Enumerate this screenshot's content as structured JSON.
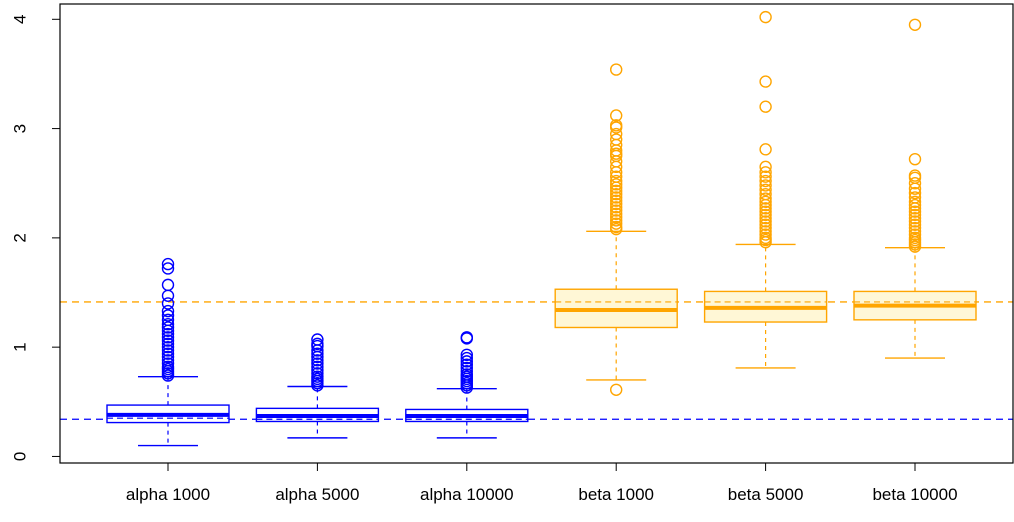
{
  "chart_data": {
    "type": "boxplot",
    "title": "",
    "xlabel": "",
    "ylabel": "",
    "ylim": [
      -0.06,
      4.14
    ],
    "yticks": [
      0,
      1,
      2,
      3,
      4
    ],
    "categories": [
      "alpha 1000",
      "alpha 5000",
      "alpha 10000",
      "beta 1000",
      "beta 5000",
      "beta 10000"
    ],
    "reference_lines": [
      {
        "y": 0.34,
        "color": "#0000ff",
        "style": "dashed"
      },
      {
        "y": 1.414,
        "color": "#ffa500",
        "style": "dashed"
      }
    ],
    "boxes": [
      {
        "category": "alpha 1000",
        "color": "#0000ff",
        "fill": "#ffffff",
        "whisker_low": 0.1,
        "q1": 0.31,
        "median": 0.38,
        "q3": 0.47,
        "whisker_high": 0.73,
        "mean": 0.35,
        "outliers": [
          0.74,
          0.76,
          0.78,
          0.8,
          0.82,
          0.85,
          0.88,
          0.91,
          0.94,
          0.97,
          1.0,
          1.03,
          1.06,
          1.09,
          1.12,
          1.15,
          1.18,
          1.21,
          1.25,
          1.29,
          1.33,
          1.4,
          1.47,
          1.57,
          1.72,
          1.76
        ]
      },
      {
        "category": "alpha 5000",
        "color": "#0000ff",
        "fill": "#ffffff",
        "whisker_low": 0.17,
        "q1": 0.32,
        "median": 0.37,
        "q3": 0.44,
        "whisker_high": 0.64,
        "mean": 0.34,
        "outliers": [
          0.65,
          0.67,
          0.69,
          0.71,
          0.73,
          0.76,
          0.79,
          0.82,
          0.85,
          0.88,
          0.91,
          0.94,
          0.97,
          1.01,
          1.03,
          1.07
        ]
      },
      {
        "category": "alpha 10000",
        "color": "#0000ff",
        "fill": "#ffffff",
        "whisker_low": 0.17,
        "q1": 0.32,
        "median": 0.37,
        "q3": 0.43,
        "whisker_high": 0.62,
        "mean": 0.34,
        "outliers": [
          0.63,
          0.65,
          0.67,
          0.69,
          0.71,
          0.73,
          0.75,
          0.78,
          0.81,
          0.84,
          0.87,
          0.9,
          0.93,
          1.08,
          1.09
        ]
      },
      {
        "category": "beta 1000",
        "color": "#ffa500",
        "fill": "#fff7d6",
        "whisker_low": 0.7,
        "q1": 1.18,
        "median": 1.34,
        "q3": 1.53,
        "whisker_high": 2.06,
        "mean": 1.414,
        "outliers": [
          0.61,
          2.08,
          2.1,
          2.13,
          2.16,
          2.19,
          2.22,
          2.25,
          2.28,
          2.31,
          2.34,
          2.37,
          2.4,
          2.43,
          2.46,
          2.49,
          2.52,
          2.56,
          2.6,
          2.65,
          2.7,
          2.75,
          2.77,
          2.8,
          2.85,
          2.9,
          2.95,
          3.01,
          3.03,
          3.12,
          3.54
        ]
      },
      {
        "category": "beta 5000",
        "color": "#ffa500",
        "fill": "#fff7d6",
        "whisker_low": 0.81,
        "q1": 1.23,
        "median": 1.36,
        "q3": 1.51,
        "whisker_high": 1.94,
        "mean": 1.414,
        "outliers": [
          1.96,
          1.98,
          2.0,
          2.03,
          2.06,
          2.09,
          2.12,
          2.15,
          2.18,
          2.21,
          2.24,
          2.27,
          2.3,
          2.33,
          2.36,
          2.4,
          2.44,
          2.48,
          2.52,
          2.56,
          2.6,
          2.65,
          2.81,
          3.2,
          3.43,
          4.02
        ]
      },
      {
        "category": "beta 10000",
        "color": "#ffa500",
        "fill": "#fff7d6",
        "whisker_low": 0.9,
        "q1": 1.25,
        "median": 1.38,
        "q3": 1.51,
        "whisker_high": 1.91,
        "mean": 1.414,
        "outliers": [
          1.92,
          1.94,
          1.96,
          1.98,
          2.0,
          2.03,
          2.06,
          2.09,
          2.12,
          2.15,
          2.18,
          2.21,
          2.24,
          2.27,
          2.3,
          2.33,
          2.37,
          2.41,
          2.45,
          2.5,
          2.55,
          2.57,
          2.72,
          3.95
        ]
      }
    ],
    "grid": false,
    "legend": "none"
  }
}
